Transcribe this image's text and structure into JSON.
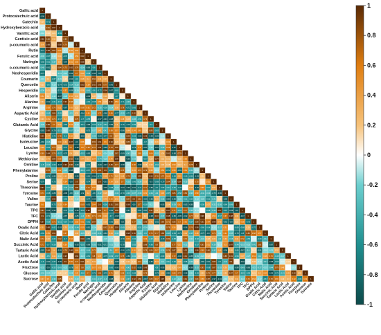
{
  "chart_data": {
    "type": "heatmap",
    "layout": "lower-triangular",
    "title": "",
    "xlabel": "",
    "ylabel": "",
    "variables": [
      "Gallic acid",
      "Protocatechuic acid",
      "Catechin",
      "Hydroxybenzoic acid",
      "Vanillic acid",
      "Gentisic acid",
      "p-coumaric acid",
      "Rutin",
      "Ferulic acid",
      "Naringin",
      "o-coumaric acid",
      "Neohesperidin",
      "Coumarin",
      "Quercetin",
      "Hesperidin",
      "Alizarin",
      "Alanine",
      "Arginine",
      "Aspartic Acid",
      "Cystine",
      "Glutamic Acid",
      "Glycine",
      "Histidine",
      "Isoleucine",
      "Leucine",
      "Lysine",
      "Methionine",
      "Ornitine",
      "Phenylalanine",
      "Proline",
      "Serine",
      "Threonine",
      "Tyrosine",
      "Valine",
      "Taurine",
      "TPC",
      "TFC",
      "DPPH",
      "Oxalic Acid",
      "Citric Acid",
      "Malic Acid",
      "Succinic Acid",
      "Tartaric Acid",
      "Lactic Acid",
      "Acetic Acid",
      "Fructose",
      "Glucose",
      "Sucrose"
    ],
    "x_tick_labels": [
      "Gallic acid",
      "Protocatechuic acid",
      "Catechin",
      "Hydroxybenzoic acid",
      "Vanillic acid",
      "Gentisic acid",
      "p-coumaric acid",
      "Rutin",
      "Ferulic acid",
      "Naringin",
      "o-coumaric acid",
      "Neohesperidin",
      "Coumarin",
      "Quercetin",
      "Hesperidin",
      "Alizarin",
      "Alanine",
      "Arginine",
      "Aspartic Acid",
      "Cystine",
      "Glutamic Acid",
      "Glycine",
      "Histidine",
      "Isoleucine",
      "Leucine",
      "Lysine",
      "Methionine",
      "Ornitine",
      "Phenylalanine",
      "Proline",
      "Serine",
      "Threonine",
      "Tyrosine",
      "Valine",
      "Taurine",
      "TPC",
      "TFC",
      "DPPH",
      "Oxalic Acid",
      "Citric Acid",
      "Malic Acid",
      "Succinic Acid",
      "Tartaric Acid",
      "Lactic Acid",
      "Acetic Acid",
      "Fructose",
      "Glucose",
      "Sucrose"
    ],
    "highlight_rows": [
      "p-coumaric acid",
      "Ferulic acid",
      "Quercetin",
      "Alanine",
      "Arginine",
      "Aspartic Acid",
      "Cystine",
      "Glutamic Acid",
      "Glycine",
      "Histidine",
      "Isoleucine",
      "Leucine",
      "Lysine",
      "Methionine"
    ],
    "colorbar": {
      "range": [
        -1,
        1
      ],
      "ticks": [
        "1",
        "0.8",
        "0.6",
        "0.4",
        "0.2",
        "0",
        "-0.2",
        "-0.4",
        "-0.6",
        "-0.8",
        "-1"
      ],
      "stops": [
        {
          "value": -1,
          "color": "#0d4a4a"
        },
        {
          "value": -0.6,
          "color": "#1f8f8f"
        },
        {
          "value": -0.2,
          "color": "#6ccfcf"
        },
        {
          "value": 0,
          "color": "#ffffff"
        },
        {
          "value": 0.2,
          "color": "#f6c27a"
        },
        {
          "value": 0.6,
          "color": "#df7d10"
        },
        {
          "value": 1,
          "color": "#5a2a05"
        }
      ]
    },
    "seed": 73
  }
}
